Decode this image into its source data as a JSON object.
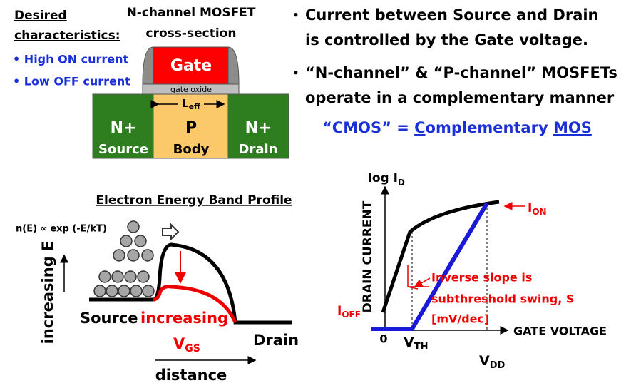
{
  "characteristics": {
    "title_line1": "Desired",
    "title_line2": "characteristics:",
    "items": [
      "• High ON current",
      "• Low OFF current"
    ]
  },
  "cross_section": {
    "title_line1": "N-channel MOSFET",
    "title_line2": "cross-section",
    "gate": "Gate",
    "oxide": "gate oxide",
    "length": "L",
    "length_sub": "eff",
    "source": {
      "doping": "N+",
      "label": "Source"
    },
    "body": {
      "doping": "P",
      "label": "Body"
    },
    "drain": {
      "doping": "N+",
      "label": "Drain"
    }
  },
  "bullets": [
    {
      "mark": "•",
      "lines": [
        "Current between Source and Drain",
        "is controlled by the Gate voltage."
      ]
    },
    {
      "mark": "•",
      "lines": [
        "“N-channel” & “P-channel” MOSFETs",
        "operate in a complementary manner"
      ]
    }
  ],
  "cmos": {
    "prefix": "“CMOS” = ",
    "c": "C",
    "omplementary": "omplementary ",
    "mos": "MOS"
  },
  "band_profile": {
    "title": "Electron Energy Band Profile",
    "distribution": "n(E) ∝ exp (-E/kT)",
    "y_axis": "increasing E",
    "source": "Source",
    "increasing": "increasing",
    "vgs": "V",
    "vgs_sub": "GS",
    "drain": "Drain",
    "x_axis": "distance"
  },
  "iv_curve": {
    "y_axis": "log I",
    "y_axis_sub": "D",
    "y_label": "DRAIN CURRENT",
    "ion": "I",
    "ion_sub": "ON",
    "ioff": "I",
    "ioff_sub": "OFF",
    "slope_note": [
      "Inverse slope is",
      "subthreshold swing, S",
      "[mV/dec]"
    ],
    "x_axis": "GATE VOLTAGE",
    "zero": "0",
    "vth": "V",
    "vth_sub": "TH",
    "vdd": "V",
    "vdd_sub": "DD"
  }
}
